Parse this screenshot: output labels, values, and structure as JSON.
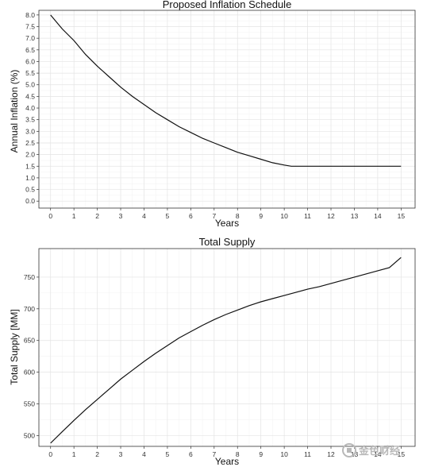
{
  "chart_data": [
    {
      "type": "line",
      "title": "Proposed Inflation Schedule",
      "xlabel": "Years",
      "ylabel": "Annual Inflation (%)",
      "xlim": [
        -0.5,
        15.6
      ],
      "ylim": [
        -0.3,
        8.2
      ],
      "x_ticks": [
        0,
        1,
        2,
        3,
        4,
        5,
        6,
        7,
        8,
        9,
        10,
        11,
        12,
        13,
        14,
        15
      ],
      "y_ticks": [
        0.0,
        0.5,
        1.0,
        1.5,
        2.0,
        2.5,
        3.0,
        3.5,
        4.0,
        4.5,
        5.0,
        5.5,
        6.0,
        6.5,
        7.0,
        7.5,
        8.0
      ],
      "grid": true,
      "series": [
        {
          "x": [
            0,
            0.5,
            1,
            1.5,
            2,
            2.5,
            3,
            3.5,
            4,
            4.5,
            5,
            5.5,
            6,
            6.5,
            7,
            7.5,
            8,
            8.5,
            9,
            9.5,
            10,
            10.3,
            11,
            12,
            13,
            14,
            15
          ],
          "y": [
            8.0,
            7.4,
            6.9,
            6.3,
            5.8,
            5.35,
            4.9,
            4.5,
            4.15,
            3.8,
            3.5,
            3.2,
            2.95,
            2.7,
            2.5,
            2.3,
            2.1,
            1.95,
            1.8,
            1.65,
            1.55,
            1.5,
            1.5,
            1.5,
            1.5,
            1.5,
            1.5
          ]
        }
      ]
    },
    {
      "type": "line",
      "title": "Total Supply",
      "xlabel": "Years",
      "ylabel": "Total Supply [MM]",
      "xlim": [
        -0.5,
        15.6
      ],
      "ylim": [
        483,
        795
      ],
      "x_ticks": [
        0,
        1,
        2,
        3,
        4,
        5,
        6,
        7,
        8,
        9,
        10,
        11,
        12,
        13,
        14,
        15
      ],
      "y_ticks": [
        500,
        550,
        600,
        650,
        700,
        750
      ],
      "grid": true,
      "series": [
        {
          "x": [
            0,
            0.5,
            1,
            1.5,
            2,
            2.5,
            3,
            3.5,
            4,
            4.5,
            5,
            5.5,
            6,
            6.5,
            7,
            7.5,
            8,
            8.5,
            9,
            9.5,
            10,
            10.5,
            11,
            11.5,
            12,
            12.5,
            13,
            13.5,
            14,
            14.5,
            15
          ],
          "y": [
            488,
            506,
            524,
            541,
            557,
            573,
            589,
            603,
            617,
            630,
            642,
            654,
            664,
            674,
            683,
            691,
            698,
            705,
            711,
            716,
            721,
            726,
            731,
            735,
            740,
            745,
            750,
            755,
            760,
            765,
            781
          ]
        }
      ]
    }
  ],
  "watermark": {
    "icon": "coin-logo-icon",
    "text": "金色财经",
    "color": "#b8b8b8"
  }
}
